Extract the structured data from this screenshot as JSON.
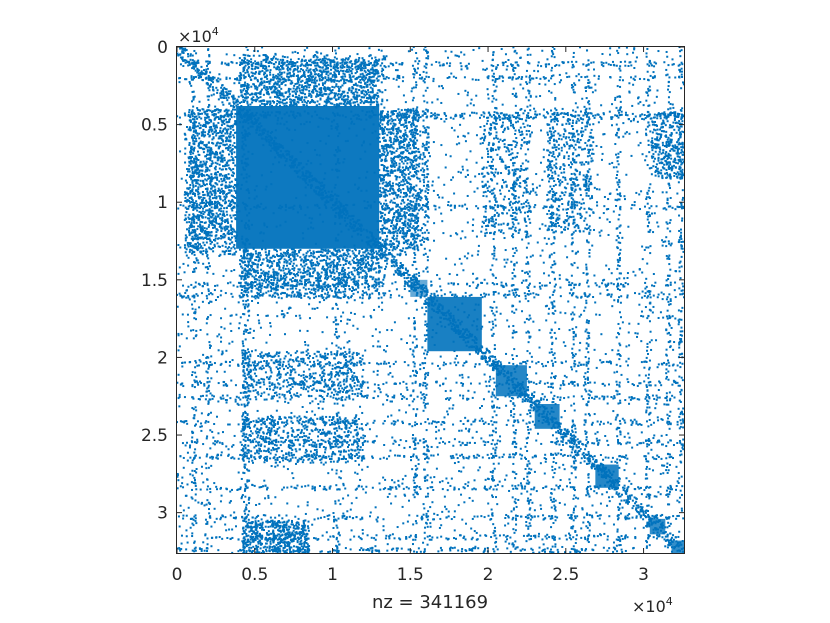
{
  "chart_data": {
    "type": "scatter",
    "title": "",
    "xlabel": "nz = 341169",
    "ylabel": "",
    "nz": 341169,
    "matrix_size": 32600,
    "xlim": [
      0,
      32600
    ],
    "ylim": [
      32600,
      0
    ],
    "y_axis_reversed": true,
    "grid": false,
    "legend": "none",
    "marker_color": "#0072BD",
    "x_ticks": {
      "values": [
        0,
        5000,
        10000,
        15000,
        20000,
        25000,
        30000
      ],
      "labels": [
        "0",
        "0.5",
        "1",
        "1.5",
        "2",
        "2.5",
        "3"
      ],
      "exponent_label": "×10",
      "exponent_power": "4"
    },
    "y_ticks": {
      "values": [
        0,
        5000,
        10000,
        15000,
        20000,
        25000,
        30000
      ],
      "labels": [
        "0",
        "0.5",
        "1",
        "1.5",
        "2",
        "2.5",
        "3"
      ],
      "exponent_label": "×10",
      "exponent_power": "4"
    },
    "dense_blocks": [
      {
        "x": [
          3800,
          13000
        ],
        "y": [
          3800,
          13000
        ],
        "density": 0.95
      },
      {
        "x": [
          16100,
          19600
        ],
        "y": [
          16100,
          19600
        ],
        "density": 0.9
      },
      {
        "x": [
          20500,
          22500
        ],
        "y": [
          20500,
          22500
        ],
        "density": 0.85
      },
      {
        "x": [
          23000,
          24600
        ],
        "y": [
          23000,
          24600
        ],
        "density": 0.85
      },
      {
        "x": [
          26900,
          28400
        ],
        "y": [
          26900,
          28400
        ],
        "density": 0.85
      },
      {
        "x": [
          30400,
          31400
        ],
        "y": [
          30400,
          31400
        ],
        "density": 0.8
      },
      {
        "x": [
          31800,
          32600
        ],
        "y": [
          31800,
          32600
        ],
        "density": 0.8
      },
      {
        "x": [
          15000,
          16100
        ],
        "y": [
          15000,
          16100
        ],
        "density": 0.6
      }
    ],
    "medium_blocks": [
      {
        "x": [
          4000,
          13000
        ],
        "y": [
          800,
          3800
        ],
        "density": 0.55
      },
      {
        "x": [
          500,
          3800
        ],
        "y": [
          4000,
          13500
        ],
        "density": 0.45
      },
      {
        "x": [
          13000,
          15500
        ],
        "y": [
          4000,
          13500
        ],
        "density": 0.4
      },
      {
        "x": [
          4000,
          13000
        ],
        "y": [
          13000,
          16200
        ],
        "density": 0.5
      },
      {
        "x": [
          4200,
          12000
        ],
        "y": [
          19600,
          22500
        ],
        "density": 0.35
      },
      {
        "x": [
          4200,
          12000
        ],
        "y": [
          23800,
          26800
        ],
        "density": 0.4
      },
      {
        "x": [
          4200,
          8500
        ],
        "y": [
          30500,
          32600
        ],
        "density": 0.35
      }
    ]
  }
}
